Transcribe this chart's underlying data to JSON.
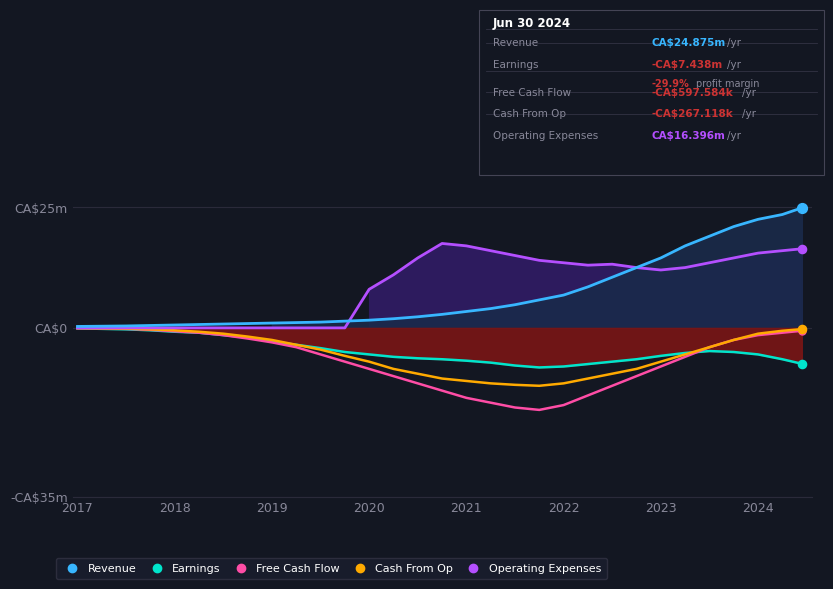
{
  "bg_color": "#131722",
  "plot_bg_color": "#131722",
  "x_years": [
    2017.0,
    2017.25,
    2017.5,
    2017.75,
    2018.0,
    2018.25,
    2018.5,
    2018.75,
    2019.0,
    2019.25,
    2019.5,
    2019.75,
    2020.0,
    2020.25,
    2020.5,
    2020.75,
    2021.0,
    2021.25,
    2021.5,
    2021.75,
    2022.0,
    2022.25,
    2022.5,
    2022.75,
    2023.0,
    2023.25,
    2023.5,
    2023.75,
    2024.0,
    2024.25,
    2024.45
  ],
  "revenue": [
    0.3,
    0.35,
    0.4,
    0.5,
    0.6,
    0.7,
    0.8,
    0.9,
    1.0,
    1.1,
    1.2,
    1.4,
    1.6,
    1.9,
    2.3,
    2.8,
    3.4,
    4.0,
    4.8,
    5.8,
    6.8,
    8.5,
    10.5,
    12.5,
    14.5,
    17.0,
    19.0,
    21.0,
    22.5,
    23.5,
    24.875
  ],
  "earnings": [
    -0.1,
    -0.2,
    -0.3,
    -0.5,
    -0.8,
    -1.0,
    -1.5,
    -2.0,
    -2.8,
    -3.5,
    -4.2,
    -5.0,
    -5.5,
    -6.0,
    -6.3,
    -6.5,
    -6.8,
    -7.2,
    -7.8,
    -8.2,
    -8.0,
    -7.5,
    -7.0,
    -6.5,
    -5.8,
    -5.2,
    -4.8,
    -5.0,
    -5.5,
    -6.5,
    -7.438
  ],
  "free_cash_flow": [
    -0.05,
    -0.1,
    -0.2,
    -0.4,
    -0.7,
    -1.0,
    -1.5,
    -2.2,
    -3.0,
    -4.0,
    -5.5,
    -7.0,
    -8.5,
    -10.0,
    -11.5,
    -13.0,
    -14.5,
    -15.5,
    -16.5,
    -17.0,
    -16.0,
    -14.0,
    -12.0,
    -10.0,
    -8.0,
    -6.0,
    -4.0,
    -2.5,
    -1.5,
    -1.0,
    -0.598
  ],
  "cash_from_op": [
    -0.05,
    -0.1,
    -0.15,
    -0.3,
    -0.5,
    -0.8,
    -1.2,
    -1.8,
    -2.5,
    -3.5,
    -4.5,
    -5.8,
    -7.0,
    -8.5,
    -9.5,
    -10.5,
    -11.0,
    -11.5,
    -11.8,
    -12.0,
    -11.5,
    -10.5,
    -9.5,
    -8.5,
    -7.0,
    -5.5,
    -4.0,
    -2.5,
    -1.2,
    -0.6,
    -0.267
  ],
  "op_expenses": [
    0.0,
    0.0,
    0.0,
    0.0,
    0.0,
    0.0,
    0.0,
    0.0,
    0.0,
    0.0,
    0.0,
    0.0,
    8.0,
    11.0,
    14.5,
    17.5,
    17.0,
    16.0,
    15.0,
    14.0,
    13.5,
    13.0,
    13.2,
    12.5,
    12.0,
    12.5,
    13.5,
    14.5,
    15.5,
    16.0,
    16.396
  ],
  "ylim": [
    -35,
    30
  ],
  "yticks": [
    -35,
    0,
    25
  ],
  "ytick_labels": [
    "-CA$35m",
    "CA$0",
    "CA$25m"
  ],
  "xticks": [
    2017,
    2018,
    2019,
    2020,
    2021,
    2022,
    2023,
    2024
  ],
  "colors": {
    "revenue": "#38b6ff",
    "earnings": "#00e5cc",
    "free_cash_flow": "#ff4da6",
    "cash_from_op": "#ffaa00",
    "op_expenses": "#b44fff"
  },
  "fill_op_expenses": "#2d1b5e",
  "fill_earnings": "#7a1515",
  "info_box": {
    "title": "Jun 30 2024",
    "rows": [
      {
        "label": "Revenue",
        "value": "CA$24.875m",
        "unit": "/yr",
        "color": "#38b6ff",
        "extra": null
      },
      {
        "label": "Earnings",
        "value": "-CA$7.438m",
        "unit": "/yr",
        "color": "#cc3333",
        "extra": "-29.9% profit margin"
      },
      {
        "label": "Free Cash Flow",
        "value": "-CA$597.584k",
        "unit": "/yr",
        "color": "#cc3333",
        "extra": null
      },
      {
        "label": "Cash From Op",
        "value": "-CA$267.118k",
        "unit": "/yr",
        "color": "#cc3333",
        "extra": null
      },
      {
        "label": "Operating Expenses",
        "value": "CA$16.396m",
        "unit": "/yr",
        "color": "#b44fff",
        "extra": null
      }
    ]
  },
  "legend": [
    {
      "label": "Revenue",
      "color": "#38b6ff"
    },
    {
      "label": "Earnings",
      "color": "#00e5cc"
    },
    {
      "label": "Free Cash Flow",
      "color": "#ff4da6"
    },
    {
      "label": "Cash From Op",
      "color": "#ffaa00"
    },
    {
      "label": "Operating Expenses",
      "color": "#b44fff"
    }
  ]
}
